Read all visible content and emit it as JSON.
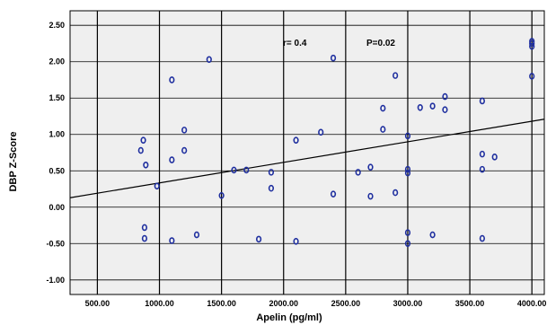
{
  "chart_data": {
    "type": "scatter",
    "title": "",
    "xlabel": "Apelin (pg/ml)",
    "ylabel": "DBP Z-Score",
    "xlim": [
      280,
      4100
    ],
    "ylim": [
      -1.2,
      2.7
    ],
    "x_ticks": [
      500,
      1000,
      1500,
      2000,
      2500,
      3000,
      3500,
      4000
    ],
    "x_tick_labels": [
      "500.00",
      "1000.00",
      "1500.00",
      "2000.00",
      "2500.00",
      "3000.00",
      "3500.00",
      "4000.00"
    ],
    "y_ticks": [
      -1.0,
      -0.5,
      0.0,
      0.5,
      1.0,
      1.5,
      2.0,
      2.5
    ],
    "y_tick_labels": [
      "-1.00",
      "-0.50",
      "0.00",
      "0.50",
      "1.00",
      "1.50",
      "2.00",
      "2.50"
    ],
    "grid": "vertical lines at x ticks, horizontal lines at y ticks",
    "background": "#efefef",
    "marker_color": "#1f2f9f",
    "fit_line": {
      "x": [
        280,
        4100
      ],
      "y": [
        0.13,
        1.21
      ],
      "color": "#000000"
    },
    "annotations": {
      "r": "r= 0.4",
      "p": "P=0.02"
    },
    "points": [
      {
        "x": 850,
        "y": 0.78
      },
      {
        "x": 870,
        "y": 0.92
      },
      {
        "x": 890,
        "y": 0.58
      },
      {
        "x": 880,
        "y": -0.28
      },
      {
        "x": 880,
        "y": -0.43
      },
      {
        "x": 980,
        "y": 0.29
      },
      {
        "x": 1100,
        "y": 1.75
      },
      {
        "x": 1100,
        "y": 0.65
      },
      {
        "x": 1100,
        "y": -0.46
      },
      {
        "x": 1200,
        "y": 1.06
      },
      {
        "x": 1200,
        "y": 0.78
      },
      {
        "x": 1300,
        "y": -0.38
      },
      {
        "x": 1400,
        "y": 2.03
      },
      {
        "x": 1500,
        "y": 0.16
      },
      {
        "x": 1600,
        "y": 0.51
      },
      {
        "x": 1700,
        "y": 0.51
      },
      {
        "x": 1800,
        "y": -0.44
      },
      {
        "x": 1900,
        "y": 0.48
      },
      {
        "x": 1900,
        "y": 0.26
      },
      {
        "x": 2100,
        "y": 0.92
      },
      {
        "x": 2100,
        "y": -0.47
      },
      {
        "x": 2300,
        "y": 1.03
      },
      {
        "x": 2400,
        "y": 2.05
      },
      {
        "x": 2400,
        "y": 0.18
      },
      {
        "x": 2600,
        "y": 0.48
      },
      {
        "x": 2700,
        "y": 0.55
      },
      {
        "x": 2700,
        "y": 0.15
      },
      {
        "x": 2800,
        "y": 1.36
      },
      {
        "x": 2800,
        "y": 1.07
      },
      {
        "x": 2900,
        "y": 1.81
      },
      {
        "x": 2900,
        "y": 0.2
      },
      {
        "x": 3000,
        "y": 0.98
      },
      {
        "x": 3000,
        "y": 0.52
      },
      {
        "x": 3000,
        "y": 0.47
      },
      {
        "x": 3000,
        "y": -0.35
      },
      {
        "x": 3000,
        "y": -0.5
      },
      {
        "x": 3100,
        "y": 1.37
      },
      {
        "x": 3200,
        "y": 1.39
      },
      {
        "x": 3200,
        "y": -0.38
      },
      {
        "x": 3300,
        "y": 1.52
      },
      {
        "x": 3300,
        "y": 1.34
      },
      {
        "x": 3600,
        "y": 1.46
      },
      {
        "x": 3600,
        "y": 0.73
      },
      {
        "x": 3600,
        "y": 0.52
      },
      {
        "x": 3600,
        "y": -0.43
      },
      {
        "x": 3700,
        "y": 0.69
      },
      {
        "x": 4000,
        "y": 2.28
      },
      {
        "x": 4000,
        "y": 2.25
      },
      {
        "x": 4000,
        "y": 2.21
      },
      {
        "x": 4000,
        "y": 1.8
      }
    ]
  }
}
